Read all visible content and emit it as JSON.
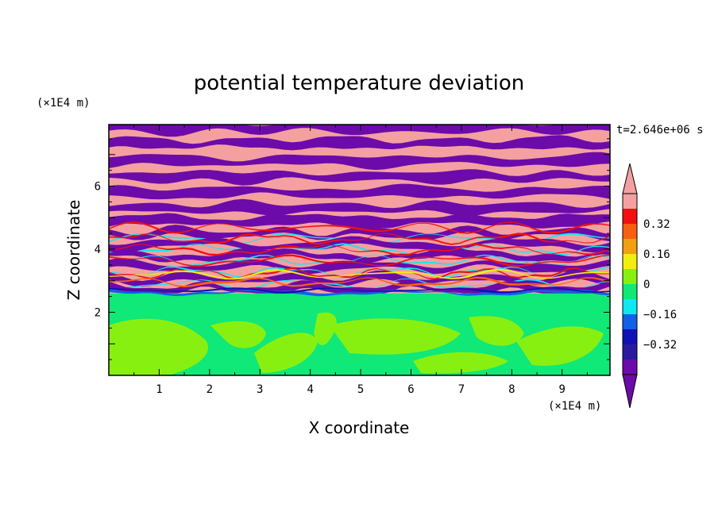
{
  "chart_data": {
    "type": "heatmap",
    "title": "potential temperature deviation",
    "xlabel": "X coordinate",
    "ylabel": "Z coordinate",
    "x_units": "(×1E4 m)",
    "y_units": "(×1E4 m)",
    "time_label": "t=2.646e+06 s",
    "xlim": [
      0,
      9.95
    ],
    "ylim": [
      0,
      7.95
    ],
    "x_ticks": [
      "1",
      "2",
      "3",
      "4",
      "5",
      "6",
      "7",
      "8",
      "9"
    ],
    "y_ticks": [
      "2",
      "4",
      "6"
    ],
    "grid": false,
    "colorbar": {
      "placement": "right",
      "levels": [
        -0.48,
        -0.4,
        -0.32,
        -0.24,
        -0.16,
        -0.08,
        0,
        0.08,
        0.16,
        0.24,
        0.32,
        0.4,
        0.48
      ],
      "tick_labels": [
        "0.32",
        "0.16",
        "0",
        "−0.16",
        "−0.32"
      ],
      "colors": [
        "#6c0ba9",
        "#2a1aa0",
        "#1010b4",
        "#1060e8",
        "#10e8f0",
        "#10e878",
        "#88f010",
        "#f0f010",
        "#f0a010",
        "#f86010",
        "#f01010",
        "#f4a0a0"
      ],
      "under_color": "#6c0ba9",
      "over_color": "#f4a0a0"
    },
    "field_description_layers": [
      {
        "z_range": [
          0,
          2.0
        ],
        "dominant": [
          "#10e878",
          "#88f010"
        ]
      },
      {
        "z_range": [
          2.0,
          2.6
        ],
        "dominant": [
          "#10e878"
        ]
      },
      {
        "z_range": [
          2.6,
          4.8
        ],
        "dominant": [
          "#6c0ba9",
          "#f4a0a0",
          "#f01010",
          "#10e8f0"
        ]
      },
      {
        "z_range": [
          4.8,
          7.95
        ],
        "dominant": [
          "#6c0ba9",
          "#f4a0a0"
        ]
      }
    ]
  }
}
